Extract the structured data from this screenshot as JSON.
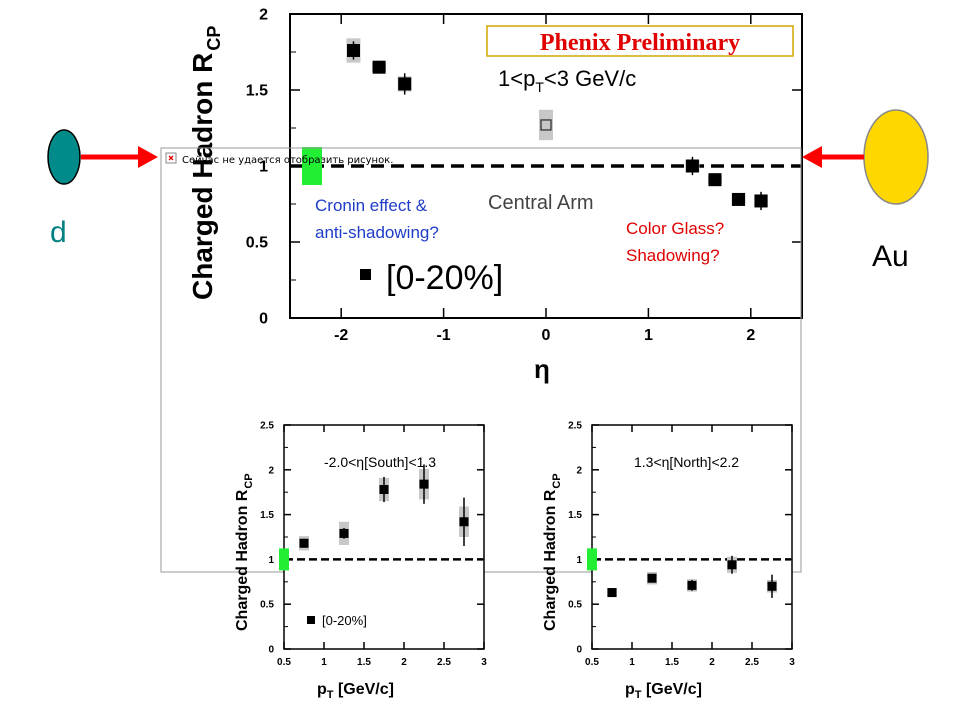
{
  "banner": {
    "text": "Phenix Preliminary"
  },
  "broken_image": {
    "alt_text": "Сейчас не удается отобразить рисунок."
  },
  "collision": {
    "left_label": "d",
    "right_label": "Au",
    "left_color": "#008B8B",
    "right_color": "#FFD700",
    "arrow_color": "#FF0000"
  },
  "annotations": {
    "cronin_line1": "Cronin effect &",
    "cronin_line2": "anti-shadowing?",
    "cgc_line1": "Color Glass?",
    "cgc_line2": "Shadowing?",
    "cronin_color": "#1E3CC8",
    "cgc_color": "#E00000"
  },
  "chart_data": [
    {
      "type": "scatter",
      "ylabel_main": "Charged Hadron R",
      "ylabel_sub": "CP",
      "xlabel": "η",
      "pt_label": "1<p",
      "pt_label_sub": "T",
      "pt_label_end": "<3 GeV/c",
      "arm_label": "Central Arm",
      "legend_label": "[0-20%]",
      "xlim": [
        -2.5,
        2.5
      ],
      "ylim": [
        0,
        2
      ],
      "xticks": [
        "-2",
        "-1",
        "0",
        "1",
        "2"
      ],
      "yticks": [
        "0",
        "0.5",
        "1",
        "1.5",
        "2"
      ],
      "reference_line": 1,
      "points": [
        {
          "x": -1.88,
          "y": 1.76,
          "err": 0.06,
          "sys": 0.08
        },
        {
          "x": -1.63,
          "y": 1.65,
          "err": 0.04,
          "sys": 0.03
        },
        {
          "x": -1.38,
          "y": 1.54,
          "err": 0.07,
          "sys": 0.05
        }
      ],
      "open_points": [
        {
          "x": 0.0,
          "y": 1.27,
          "sys": 0.1
        }
      ],
      "points_north": [
        {
          "x": 1.43,
          "y": 1.0,
          "err": 0.06,
          "sys": 0.04
        },
        {
          "x": 1.65,
          "y": 0.91,
          "err": 0.02,
          "sys": 0.03
        },
        {
          "x": 1.88,
          "y": 0.78,
          "err": 0.04,
          "sys": 0.04
        },
        {
          "x": 2.1,
          "y": 0.77,
          "err": 0.06,
          "sys": 0.04
        }
      ],
      "norm_box": {
        "x": -2.27,
        "y": 1.0,
        "half": 0.08
      }
    },
    {
      "type": "scatter",
      "ylabel_main": "Charged Hadron R",
      "ylabel_sub": "CP",
      "xlabel_main": "p",
      "xlabel_sub": "T",
      "xlabel_end": " [GeV/c]",
      "range_label": "-2.0<η[South]<1.3",
      "legend_label": "[0-20%]",
      "xlim": [
        0.5,
        3.0
      ],
      "ylim": [
        0,
        2.5
      ],
      "xticks": [
        "0.5",
        "1",
        "1.5",
        "2",
        "2.5",
        "3"
      ],
      "yticks": [
        "0",
        "0.5",
        "1",
        "1.5",
        "2",
        "2.5"
      ],
      "reference_line": 1,
      "points": [
        {
          "x": 0.75,
          "y": 1.18,
          "err": 0.05,
          "sys": 0.08
        },
        {
          "x": 1.25,
          "y": 1.29,
          "err": 0.06,
          "sys": 0.13
        },
        {
          "x": 1.75,
          "y": 1.78,
          "err": 0.14,
          "sys": 0.13
        },
        {
          "x": 2.25,
          "y": 1.84,
          "err": 0.22,
          "sys": 0.17
        },
        {
          "x": 2.75,
          "y": 1.42,
          "err": 0.27,
          "sys": 0.17
        }
      ]
    },
    {
      "type": "scatter",
      "ylabel_main": "Charged Hadron R",
      "ylabel_sub": "CP",
      "xlabel_main": "p",
      "xlabel_sub": "T",
      "xlabel_end": " [GeV/c]",
      "range_label": "1.3<η[North]<2.2",
      "xlim": [
        0.5,
        3.0
      ],
      "ylim": [
        0,
        2.5
      ],
      "xticks": [
        "0.5",
        "1",
        "1.5",
        "2",
        "2.5",
        "3"
      ],
      "yticks": [
        "0",
        "0.5",
        "1",
        "1.5",
        "2",
        "2.5"
      ],
      "reference_line": 1,
      "points": [
        {
          "x": 0.75,
          "y": 0.63,
          "err": 0.03,
          "sys": 0.05
        },
        {
          "x": 1.25,
          "y": 0.79,
          "err": 0.03,
          "sys": 0.07
        },
        {
          "x": 1.75,
          "y": 0.71,
          "err": 0.06,
          "sys": 0.07
        },
        {
          "x": 2.25,
          "y": 0.94,
          "err": 0.1,
          "sys": 0.09
        },
        {
          "x": 2.75,
          "y": 0.7,
          "err": 0.13,
          "sys": 0.07
        }
      ]
    }
  ]
}
